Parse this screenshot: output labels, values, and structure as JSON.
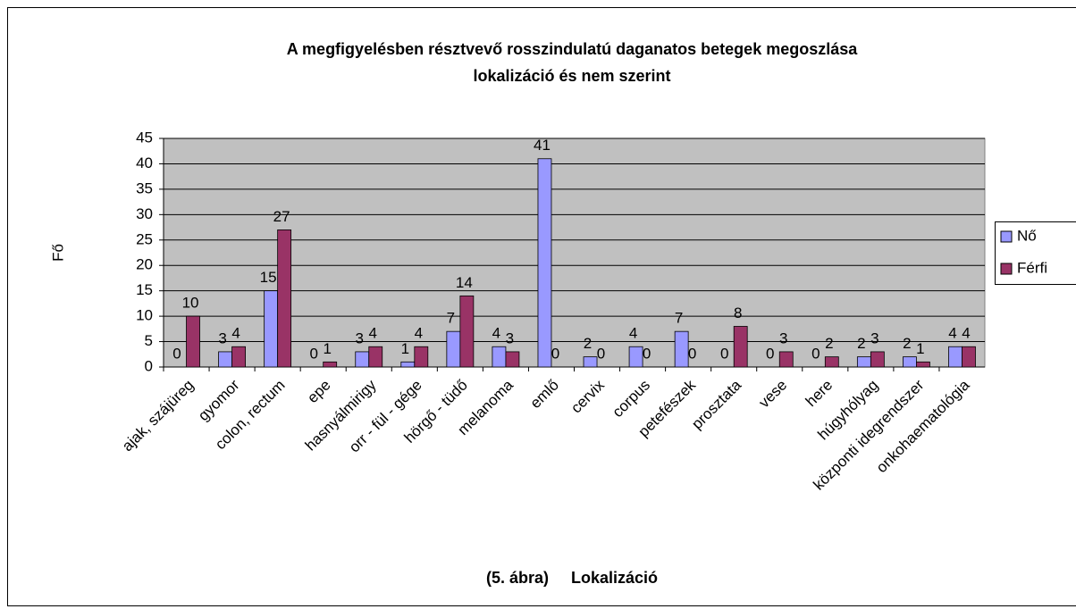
{
  "chart_data": {
    "type": "bar",
    "title": [
      "A megfigyelésben résztvevő rosszindulatú daganatos betegek megoszlása",
      "lokalizáció és nem szerint"
    ],
    "xlabel": "(5. ábra)     Lokalizáció",
    "ylabel": "Fő",
    "categories": [
      "ajak, szájüreg",
      "gyomor",
      "colon, rectum",
      "epe",
      "hasnyálmirigy",
      "orr - fül - gége",
      "hörgő - tüdő",
      "melanoma",
      "emlő",
      "cervix",
      "corpus",
      "petefészek",
      "prosztata",
      "vese",
      "here",
      "húgyhólyag",
      "központi idegrendszer",
      "onkohaematológia"
    ],
    "series": [
      {
        "name": "Nő",
        "color": "#9999ff",
        "values": [
          0,
          3,
          15,
          0,
          3,
          1,
          7,
          4,
          41,
          2,
          4,
          7,
          0,
          0,
          0,
          2,
          2,
          4
        ]
      },
      {
        "name": "Férfi",
        "color": "#993366",
        "values": [
          10,
          4,
          27,
          1,
          4,
          4,
          14,
          3,
          0,
          0,
          0,
          0,
          8,
          3,
          2,
          3,
          1,
          4
        ]
      }
    ],
    "ylim": [
      0,
      45
    ],
    "yticks": [
      0,
      5,
      10,
      15,
      20,
      25,
      30,
      35,
      40,
      45
    ],
    "grid": true,
    "legend": "right"
  }
}
